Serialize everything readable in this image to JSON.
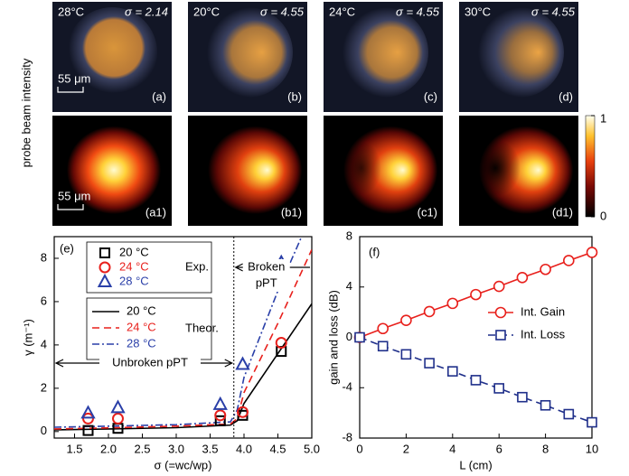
{
  "panels": {
    "ylabel": "probe beam intensity",
    "scale_bar": "55 μm",
    "top": [
      {
        "temp": "28°C",
        "sigma": "σ = 2.14",
        "label": "(a)"
      },
      {
        "temp": "20°C",
        "sigma": "σ = 4.55",
        "label": "(b)"
      },
      {
        "temp": "24°C",
        "sigma": "σ = 4.55",
        "label": "(c)"
      },
      {
        "temp": "30°C",
        "sigma": "σ = 4.55",
        "label": "(d)"
      }
    ],
    "bottom": [
      {
        "label": "(a1)"
      },
      {
        "label": "(b1)"
      },
      {
        "label": "(c1)"
      },
      {
        "label": "(d1)"
      }
    ],
    "colorbar": {
      "ticks": [
        0,
        1
      ]
    }
  },
  "chart_data": [
    {
      "type": "scatter",
      "title": "(e)",
      "xlabel": "σ (=wc/wp)",
      "ylabel": "γ (m⁻¹)",
      "xlim": [
        1.2,
        5.0
      ],
      "ylim": [
        -0.3,
        9
      ],
      "xticks": [
        1.5,
        {
          "value": 2,
          "label": "2.0"
        },
        2.5,
        {
          "value": 3,
          "label": "3.0"
        },
        3.5,
        {
          "value": 4,
          "label": "4.0"
        },
        4.5,
        {
          "value": 5,
          "label": "5.0"
        }
      ],
      "yticks": [
        0,
        2,
        4,
        6,
        8
      ],
      "vline": 3.85,
      "legend_titles": [
        "Exp.",
        "Theor."
      ],
      "annotations": [
        "Unbroken pPT",
        "Broken",
        "pPT"
      ],
      "series": [
        {
          "name": "20 °C",
          "color": "#000000",
          "marker": "square",
          "x": [
            1.7,
            2.14,
            3.65,
            3.98,
            4.55
          ],
          "values": [
            0.05,
            0.15,
            0.5,
            0.75,
            3.7
          ]
        },
        {
          "name": "24 °C",
          "color": "#e8201c",
          "marker": "circle",
          "x": [
            1.7,
            2.14,
            3.65,
            3.98,
            4.55
          ],
          "values": [
            0.6,
            0.6,
            0.75,
            0.9,
            4.1
          ]
        },
        {
          "name": "28 °C",
          "color": "#2a3fa8",
          "marker": "triangle",
          "x": [
            1.7,
            2.14,
            3.65,
            3.98,
            4.55
          ],
          "values": [
            0.85,
            1.1,
            1.25,
            3.1,
            7.8
          ]
        }
      ],
      "lines": [
        {
          "name": "20 °C",
          "color": "#000000",
          "dash": "solid",
          "x": [
            1.2,
            2,
            3,
            3.8,
            3.9,
            4.0,
            4.5,
            5.0
          ],
          "values": [
            0.08,
            0.12,
            0.18,
            0.3,
            0.5,
            1.3,
            3.6,
            5.9
          ]
        },
        {
          "name": "24 °C",
          "color": "#e8201c",
          "dash": "dashed",
          "x": [
            1.2,
            2,
            3,
            3.8,
            3.9,
            4.0,
            4.5,
            5.0
          ],
          "values": [
            0.12,
            0.17,
            0.25,
            0.35,
            0.6,
            1.8,
            5.0,
            8.4
          ]
        },
        {
          "name": "28 °C",
          "color": "#2a3fa8",
          "dash": "dashdot",
          "x": [
            1.2,
            2,
            3,
            3.8,
            3.9,
            4.0,
            4.5,
            4.85
          ],
          "values": [
            0.2,
            0.25,
            0.32,
            0.45,
            1.0,
            2.5,
            6.5,
            9
          ]
        }
      ]
    },
    {
      "type": "line",
      "title": "(f)",
      "xlabel": "L (cm)",
      "ylabel": "gain and loss (dB)",
      "xlim": [
        0,
        10
      ],
      "ylim": [
        -8,
        8
      ],
      "xticks": [
        0,
        2,
        4,
        6,
        8,
        10
      ],
      "yticks": [
        -8,
        -4,
        0,
        4,
        8
      ],
      "x": [
        0,
        1,
        2,
        3,
        4,
        5,
        6,
        7,
        8,
        9,
        10
      ],
      "series": [
        {
          "name": "Int. Gain",
          "color": "#e8201c",
          "marker": "circle",
          "dash": "solid",
          "values": [
            0,
            0.7,
            1.35,
            2.05,
            2.7,
            3.4,
            4.05,
            4.75,
            5.4,
            6.1,
            6.75
          ]
        },
        {
          "name": "Int. Loss",
          "color": "#1f2f8a",
          "marker": "square",
          "dash": "dashed",
          "values": [
            0,
            -0.7,
            -1.35,
            -2.05,
            -2.7,
            -3.4,
            -4.05,
            -4.75,
            -5.4,
            -6.1,
            -6.75
          ]
        }
      ]
    }
  ]
}
